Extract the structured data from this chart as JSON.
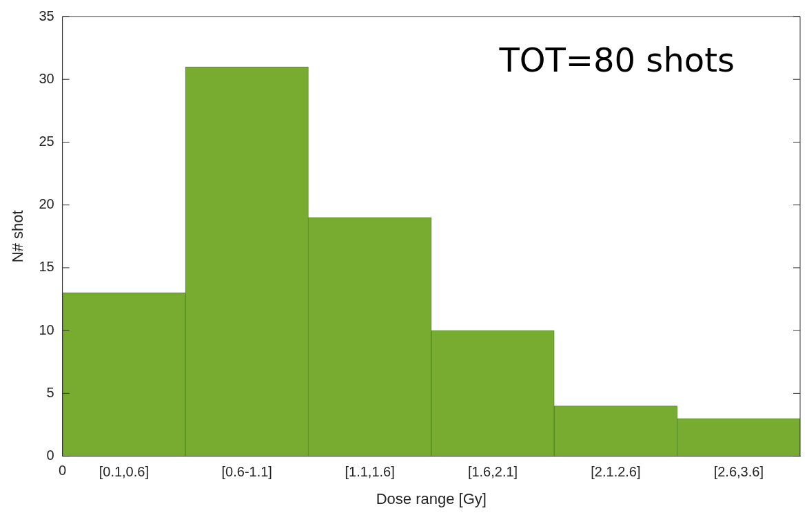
{
  "chart_data": {
    "type": "bar",
    "xlabel": "Dose range [Gy]",
    "ylabel": "N# shot",
    "categories": [
      "[0.1,0.6]",
      "[0.6-1.1]",
      "[1.1,1.6]",
      "[1.6,2.1]",
      "[2.1.2.6]",
      "[2.6,3.6]"
    ],
    "values": [
      13,
      31,
      19,
      10,
      4,
      3
    ],
    "color": "#77ac30",
    "ylim": [
      0,
      35
    ],
    "yticks": [
      0,
      5,
      10,
      15,
      20,
      25,
      30,
      35
    ],
    "grid": false,
    "legend": false,
    "annotations": [
      "TOT=80 shots",
      "0"
    ]
  }
}
